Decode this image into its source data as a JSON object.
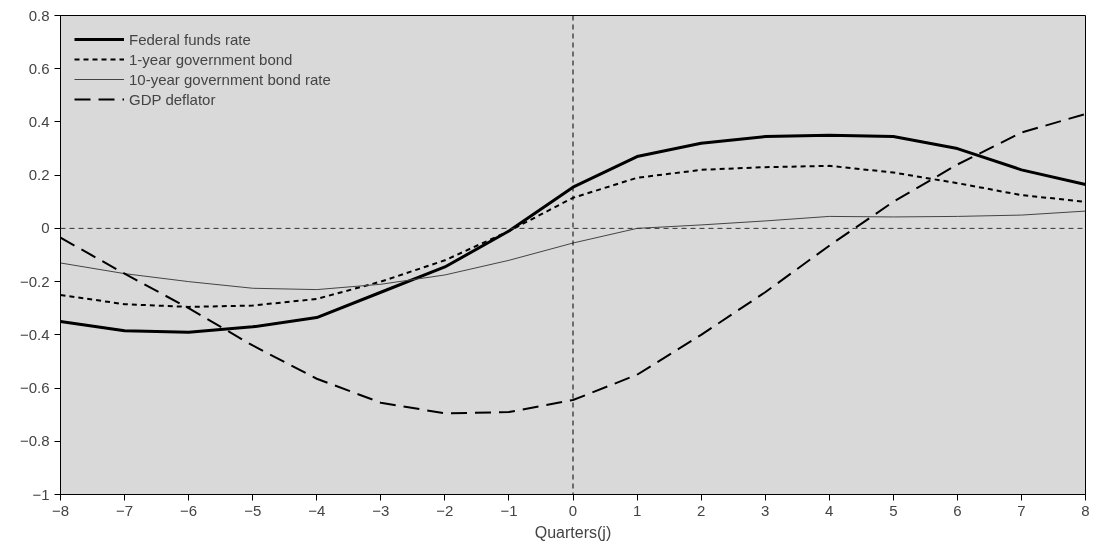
{
  "chart_data": {
    "type": "line",
    "xlabel": "Quarters(j)",
    "x": [
      -8,
      -7,
      -6,
      -5,
      -4,
      -3,
      -2,
      -1,
      0,
      1,
      2,
      3,
      4,
      5,
      6,
      7,
      8
    ],
    "series": [
      {
        "name": "Federal funds rate",
        "color": "#000000",
        "line_style": "solid",
        "values": [
          -0.35,
          -0.385,
          -0.39,
          -0.37,
          -0.335,
          -0.24,
          -0.145,
          -0.01,
          0.155,
          0.27,
          0.32,
          0.345,
          0.35,
          0.345,
          0.3,
          0.22,
          0.165
        ]
      },
      {
        "name": "1-year government bond",
        "color": "#000000",
        "line_style": "dotted",
        "values": [
          -0.25,
          -0.285,
          -0.295,
          -0.29,
          -0.265,
          -0.2,
          -0.12,
          -0.01,
          0.115,
          0.19,
          0.22,
          0.23,
          0.235,
          0.21,
          0.17,
          0.125,
          0.1
        ]
      },
      {
        "name": "10-year government bond rate",
        "color": "#444444",
        "line_style": "solid",
        "values": [
          -0.13,
          -0.17,
          -0.2,
          -0.225,
          -0.23,
          -0.21,
          -0.175,
          -0.12,
          -0.055,
          0,
          0.013,
          0.028,
          0.045,
          0.043,
          0.045,
          0.05,
          0.065
        ]
      },
      {
        "name": "GDP deflator",
        "color": "#000000",
        "line_style": "dashed",
        "values": [
          -0.035,
          -0.17,
          -0.3,
          -0.44,
          -0.565,
          -0.655,
          -0.695,
          -0.69,
          -0.645,
          -0.55,
          -0.4,
          -0.24,
          -0.065,
          0.1,
          0.24,
          0.36,
          0.43
        ]
      }
    ],
    "xlim": [
      -8,
      8
    ],
    "xticks": [
      {
        "value": -8,
        "label": "−8"
      },
      {
        "value": -7,
        "label": "−7"
      },
      {
        "value": -6,
        "label": "−6"
      },
      {
        "value": -5,
        "label": "−5"
      },
      {
        "value": -4,
        "label": "−4"
      },
      {
        "value": -3,
        "label": "−3"
      },
      {
        "value": -2,
        "label": "−2"
      },
      {
        "value": -1,
        "label": "−1"
      },
      0,
      1,
      2,
      3,
      4,
      5,
      6,
      7,
      8
    ],
    "ylim": [
      -1,
      0.8
    ],
    "yticks": [
      {
        "value": -1,
        "label": "−1"
      },
      {
        "value": -0.8,
        "label": "−0.8"
      },
      {
        "value": -0.6,
        "label": "−0.6"
      },
      {
        "value": -0.4,
        "label": "−0.4"
      },
      {
        "value": -0.2,
        "label": "−0.2"
      },
      0,
      0.2,
      0.4,
      0.6,
      0.8
    ],
    "ref_lines": [
      {
        "axis": "x",
        "value": 0,
        "line_style": "dotted",
        "color": "#000000"
      },
      {
        "axis": "y",
        "value": 0,
        "line_style": "dotted",
        "color": "#333333"
      }
    ],
    "grid": false,
    "legend": "top left"
  }
}
